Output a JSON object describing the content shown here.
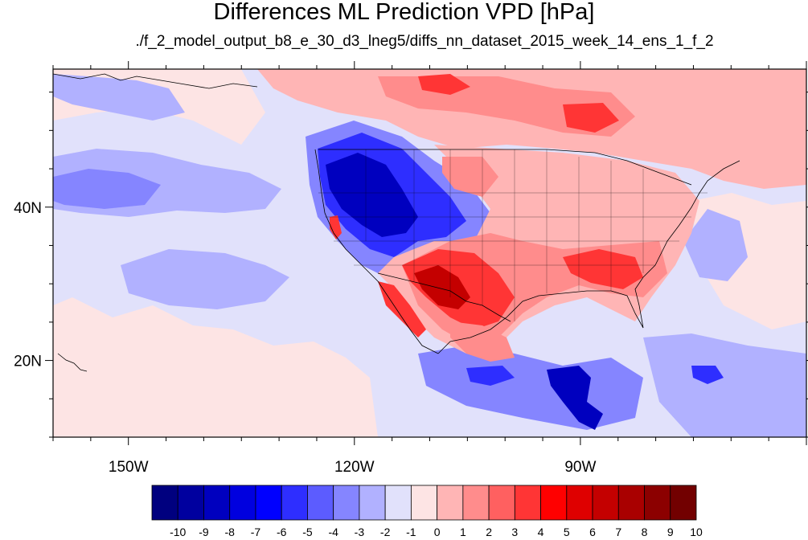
{
  "title": "Differences ML Prediction VPD [hPa]",
  "subtitle": "./f_2_model_output_b8_e_30_d3_lneg5/diffs_nn_dataset_2015_week_14_ens_1_f_2",
  "axes": {
    "lat_ticks": [
      {
        "value": 40,
        "label": "40N"
      },
      {
        "value": 20,
        "label": "20N"
      }
    ],
    "lon_ticks": [
      {
        "value": -150,
        "label": "150W"
      },
      {
        "value": -120,
        "label": "120W"
      },
      {
        "value": -90,
        "label": "90W"
      }
    ],
    "lon_range": [
      -160,
      -60
    ],
    "lat_range": [
      10,
      58
    ]
  },
  "colorbar": {
    "labels": [
      "-10",
      "-9",
      "-8",
      "-7",
      "-6",
      "-5",
      "-4",
      "-3",
      "-2",
      "-1",
      "0",
      "1",
      "2",
      "3",
      "4",
      "5",
      "6",
      "7",
      "8",
      "9",
      "10"
    ],
    "colors": [
      "#00007f",
      "#00009f",
      "#0000bf",
      "#0000df",
      "#0000ff",
      "#2e2eff",
      "#5c5cff",
      "#8585ff",
      "#b1b1ff",
      "#e1e1fb",
      "#fde4e4",
      "#ffb5b5",
      "#ff8c8c",
      "#ff6060",
      "#ff3535",
      "#ff0000",
      "#df0000",
      "#c40000",
      "#a90000",
      "#8c0000",
      "#720000"
    ]
  },
  "map_colors": {
    "background_neg": "#e1e1fb",
    "neg2": "#b1b1ff",
    "neg3": "#8585ff",
    "neg5": "#2e2eff",
    "neg8": "#0000bf",
    "pos1": "#fde4e4",
    "pos2": "#ffb5b5",
    "pos3": "#ff8c8c",
    "pos5": "#ff3535",
    "pos7": "#c40000",
    "pos9": "#8c0000"
  }
}
